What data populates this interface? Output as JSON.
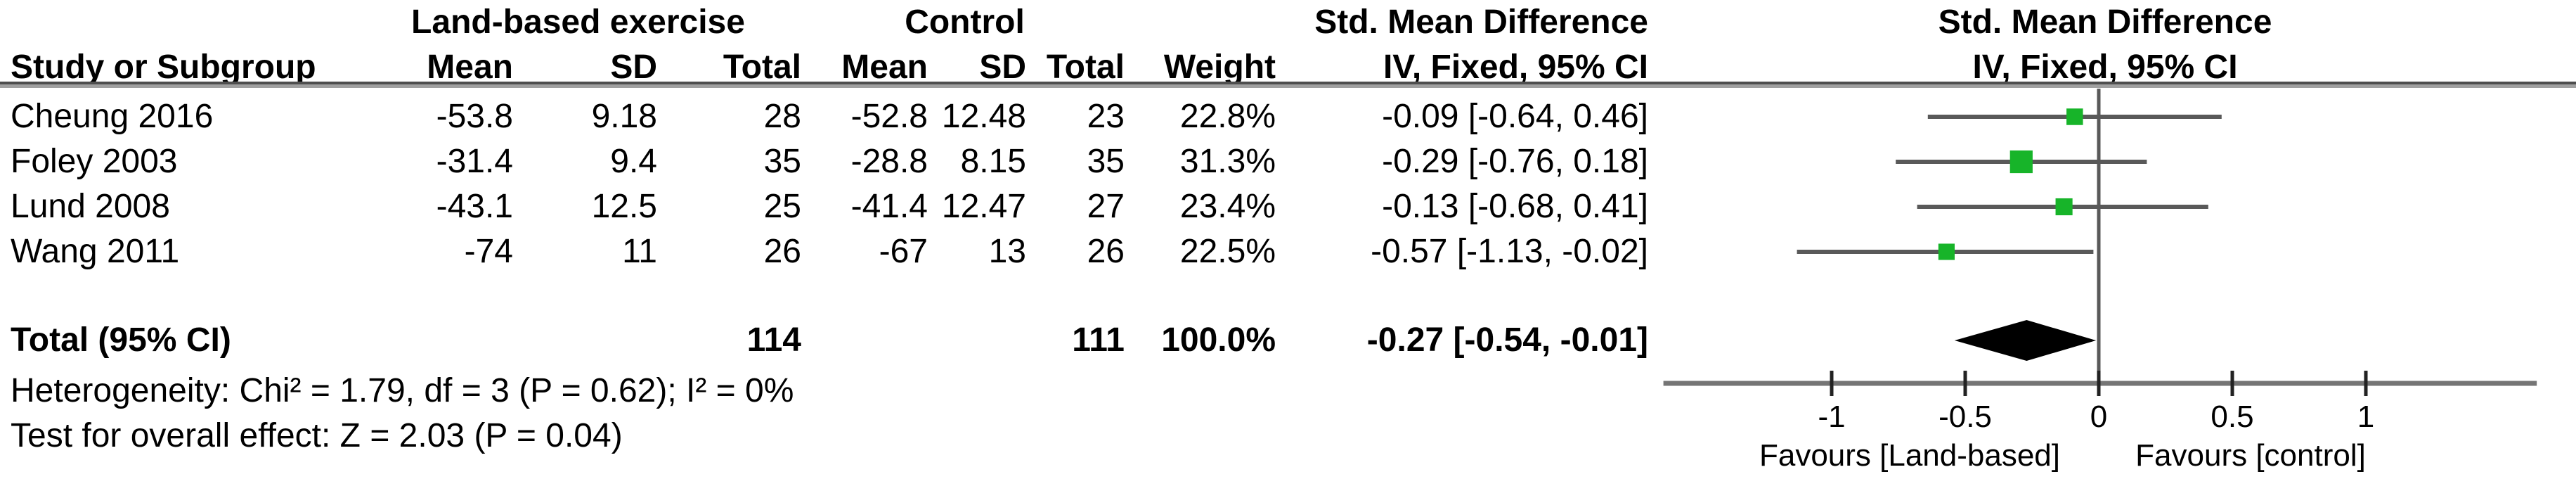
{
  "header": {
    "group1": "Land-based exercise",
    "group2": "Control",
    "effect_title": "Std. Mean Difference",
    "effect_sub": "IV, Fixed, 95% CI",
    "plot_title": "Std. Mean Difference",
    "plot_sub": "IV, Fixed, 95% CI",
    "col_study": "Study or Subgroup",
    "col_mean": "Mean",
    "col_sd": "SD",
    "col_total": "Total",
    "col_weight": "Weight"
  },
  "chart_data": {
    "type": "forest",
    "title": "Std. Mean Difference, IV, Fixed, 95% CI",
    "studies": [
      {
        "name": "Cheung 2016",
        "mean1": "-53.8",
        "sd1": "9.18",
        "total1": "28",
        "mean2": "-52.8",
        "sd2": "12.48",
        "total2": "23",
        "weight": "22.8%",
        "weight_pct": 22.8,
        "ci_text": "-0.09 [-0.64, 0.46]",
        "smd": -0.09,
        "ci_low": -0.64,
        "ci_high": 0.46
      },
      {
        "name": "Foley 2003",
        "mean1": "-31.4",
        "sd1": "9.4",
        "total1": "35",
        "mean2": "-28.8",
        "sd2": "8.15",
        "total2": "35",
        "weight": "31.3%",
        "weight_pct": 31.3,
        "ci_text": "-0.29 [-0.76, 0.18]",
        "smd": -0.29,
        "ci_low": -0.76,
        "ci_high": 0.18
      },
      {
        "name": "Lund 2008",
        "mean1": "-43.1",
        "sd1": "12.5",
        "total1": "25",
        "mean2": "-41.4",
        "sd2": "12.47",
        "total2": "27",
        "weight": "23.4%",
        "weight_pct": 23.4,
        "ci_text": "-0.13 [-0.68, 0.41]",
        "smd": -0.13,
        "ci_low": -0.68,
        "ci_high": 0.41
      },
      {
        "name": "Wang 2011",
        "mean1": "-74",
        "sd1": "11",
        "total1": "26",
        "mean2": "-67",
        "sd2": "13",
        "total2": "26",
        "weight": "22.5%",
        "weight_pct": 22.5,
        "ci_text": "-0.57 [-1.13, -0.02]",
        "smd": -0.57,
        "ci_low": -1.13,
        "ci_high": -0.02
      }
    ],
    "total": {
      "label": "Total (95% CI)",
      "total1": "114",
      "total2": "111",
      "weight": "100.0%",
      "ci_text": "-0.27 [-0.54, -0.01]",
      "smd": -0.27,
      "ci_low": -0.54,
      "ci_high": -0.01
    },
    "heterogeneity": "Heterogeneity: Chi² = 1.79, df = 3 (P = 0.62); I² = 0%",
    "overall_effect": "Test for overall effect: Z = 2.03 (P = 0.04)",
    "axis": {
      "ticks": [
        -1,
        -0.5,
        0,
        0.5,
        1
      ],
      "tick_labels": [
        "-1",
        "-0.5",
        "0",
        "0.5",
        "1"
      ],
      "range": [
        -1.63,
        1.64
      ],
      "favours_left": "Favours [Land-based]",
      "favours_right": "Favours [control]"
    },
    "colors": {
      "marker": "#17b429",
      "line": "#595959",
      "axis": "#757575",
      "tick": "#222222",
      "diamond": "#000000"
    }
  }
}
